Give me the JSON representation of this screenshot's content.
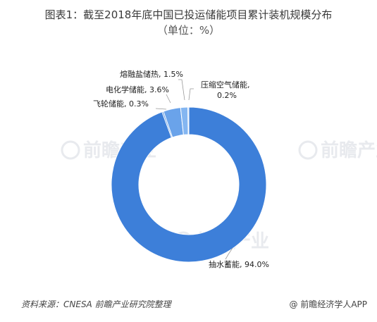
{
  "header": {
    "title": "图表1：截至2018年底中国已投运储能项目累计装机规模分布",
    "subtitle": "（单位：%）"
  },
  "chart_data": {
    "type": "pie",
    "donut": true,
    "legend": "none",
    "slices": [
      {
        "name": "抽水蓄能",
        "value": 94.0,
        "label": "抽水蓄能, 94.0%",
        "color": "#3d7fd9"
      },
      {
        "name": "飞轮储能",
        "value": 0.3,
        "label": "飞轮储能, 0.3%",
        "color": "#4f8fe0"
      },
      {
        "name": "电化学储能",
        "value": 3.6,
        "label": "电化学储能, 3.6%",
        "color": "#6aa3ea"
      },
      {
        "name": "熔融盐储热",
        "value": 1.5,
        "label": "熔融盐储热, 1.5%",
        "color": "#84b6f1"
      },
      {
        "name": "压缩空气储能",
        "value": 0.2,
        "label_line1": "压缩空气储能,",
        "label_line2": "0.2%",
        "color": "#a0c8f6"
      }
    ]
  },
  "watermark": {
    "text": "前瞻产业"
  },
  "footer": {
    "source": "资料来源：CNESA  前瞻产业研究院整理",
    "brand_symbol": "@",
    "brand": "前瞻经济学人APP"
  }
}
